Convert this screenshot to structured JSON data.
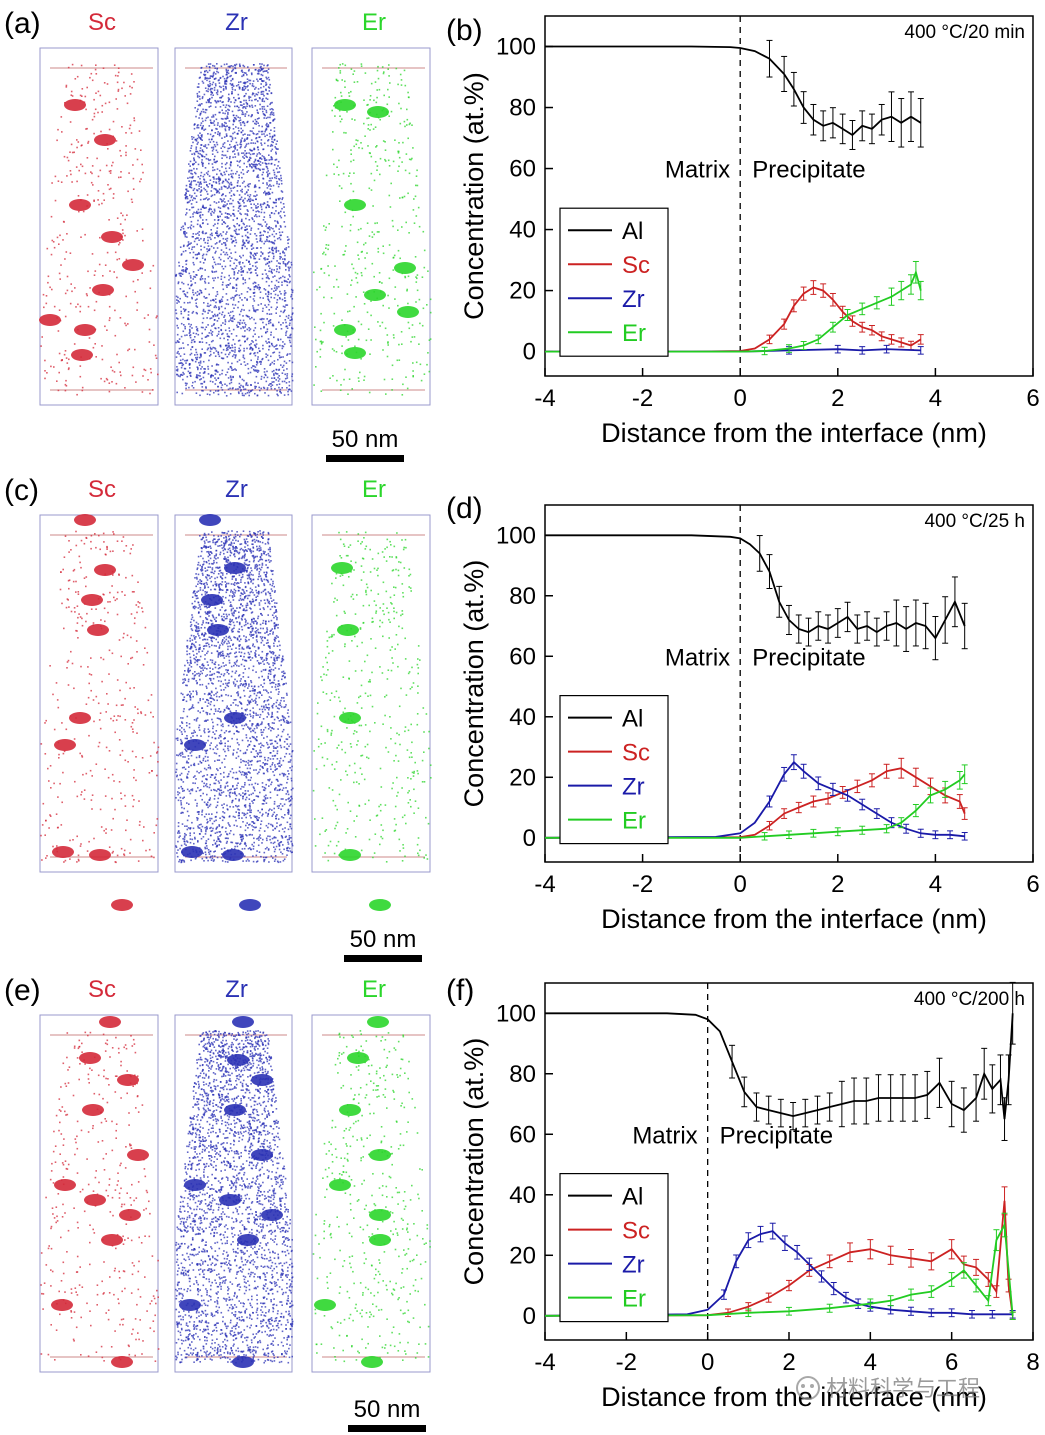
{
  "panels": [
    {
      "label": "(a)",
      "elements": [
        {
          "name": "Sc",
          "color": "#d42a3a"
        },
        {
          "name": "Zr",
          "color": "#2b32b5"
        },
        {
          "name": "Er",
          "color": "#2bd62b"
        }
      ],
      "scale_bar": "50 nm"
    },
    {
      "label": "(c)",
      "elements": [
        {
          "name": "Sc",
          "color": "#d42a3a"
        },
        {
          "name": "Zr",
          "color": "#2b32b5"
        },
        {
          "name": "Er",
          "color": "#2bd62b"
        }
      ],
      "scale_bar": "50 nm"
    },
    {
      "label": "(e)",
      "elements": [
        {
          "name": "Sc",
          "color": "#d42a3a"
        },
        {
          "name": "Zr",
          "color": "#2b32b5"
        },
        {
          "name": "Er",
          "color": "#2bd62b"
        }
      ],
      "scale_bar": "50 nm"
    }
  ],
  "watermark": "材料科学与工程",
  "chart_data": [
    {
      "type": "line",
      "panel_label": "(b)",
      "condition": "400 °C/20 min",
      "xlabel": "Distance from the interface (nm)",
      "ylabel": "Concentration (at.%)",
      "xlim": [
        -4,
        6
      ],
      "ylim": [
        -8,
        110
      ],
      "xticks": [
        -4,
        -2,
        0,
        2,
        4,
        6
      ],
      "yticks": [
        0,
        20,
        40,
        60,
        80,
        100
      ],
      "region_labels": [
        "Matrix",
        "Precipitate"
      ],
      "interface_x": 0,
      "legend": "left-center",
      "series": [
        {
          "name": "Al",
          "color": "#000000",
          "points": [
            [
              -4,
              100
            ],
            [
              -1,
              100
            ],
            [
              -0.2,
              99.8
            ],
            [
              0,
              99.5
            ],
            [
              0.3,
              98.5
            ],
            [
              0.6,
              96
            ],
            [
              0.9,
              91
            ],
            [
              1.1,
              86
            ],
            [
              1.3,
              80
            ],
            [
              1.5,
              76
            ],
            [
              1.7,
              74
            ],
            [
              1.9,
              75
            ],
            [
              2.1,
              73
            ],
            [
              2.3,
              71
            ],
            [
              2.5,
              74
            ],
            [
              2.7,
              73
            ],
            [
              2.9,
              76
            ],
            [
              3.1,
              77
            ],
            [
              3.3,
              75
            ],
            [
              3.5,
              77
            ],
            [
              3.7,
              75
            ]
          ]
        },
        {
          "name": "Sc",
          "color": "#cc2222",
          "points": [
            [
              -4,
              0
            ],
            [
              -1,
              0
            ],
            [
              0,
              0.2
            ],
            [
              0.3,
              1
            ],
            [
              0.6,
              4
            ],
            [
              0.9,
              9
            ],
            [
              1.1,
              15
            ],
            [
              1.3,
              19
            ],
            [
              1.5,
              21
            ],
            [
              1.7,
              20
            ],
            [
              1.9,
              17
            ],
            [
              2.1,
              13
            ],
            [
              2.3,
              10
            ],
            [
              2.5,
              8
            ],
            [
              2.7,
              7
            ],
            [
              2.9,
              5
            ],
            [
              3.1,
              4
            ],
            [
              3.3,
              3
            ],
            [
              3.5,
              2
            ],
            [
              3.7,
              4
            ]
          ]
        },
        {
          "name": "Zr",
          "color": "#1a1aa8",
          "points": [
            [
              -4,
              0
            ],
            [
              0,
              0
            ],
            [
              1,
              0.4
            ],
            [
              2,
              0.8
            ],
            [
              2.5,
              0.4
            ],
            [
              3,
              0.8
            ],
            [
              3.7,
              0.4
            ]
          ]
        },
        {
          "name": "Er",
          "color": "#22cc22",
          "points": [
            [
              -4,
              0
            ],
            [
              0,
              0
            ],
            [
              0.5,
              0.2
            ],
            [
              1,
              1
            ],
            [
              1.3,
              2
            ],
            [
              1.6,
              4
            ],
            [
              1.9,
              8
            ],
            [
              2.2,
              12
            ],
            [
              2.5,
              14
            ],
            [
              2.8,
              16
            ],
            [
              3.1,
              18
            ],
            [
              3.3,
              20
            ],
            [
              3.5,
              22
            ],
            [
              3.6,
              26
            ],
            [
              3.7,
              20
            ]
          ]
        }
      ]
    },
    {
      "type": "line",
      "panel_label": "(d)",
      "condition": "400 °C/25 h",
      "xlabel": "Distance from the interface (nm)",
      "ylabel": "Concentration (at.%)",
      "xlim": [
        -4,
        6
      ],
      "ylim": [
        -8,
        110
      ],
      "xticks": [
        -4,
        -2,
        0,
        2,
        4,
        6
      ],
      "yticks": [
        0,
        20,
        40,
        60,
        80,
        100
      ],
      "region_labels": [
        "Matrix",
        "Precipitate"
      ],
      "interface_x": 0,
      "legend": "left-center",
      "series": [
        {
          "name": "Al",
          "color": "#000000",
          "points": [
            [
              -4,
              100
            ],
            [
              -1,
              100
            ],
            [
              -0.2,
              99.5
            ],
            [
              0,
              99
            ],
            [
              0.2,
              97
            ],
            [
              0.4,
              94
            ],
            [
              0.6,
              88
            ],
            [
              0.8,
              78
            ],
            [
              1,
              72
            ],
            [
              1.2,
              69
            ],
            [
              1.4,
              68
            ],
            [
              1.6,
              70
            ],
            [
              1.8,
              69
            ],
            [
              2,
              71
            ],
            [
              2.2,
              73
            ],
            [
              2.4,
              69
            ],
            [
              2.6,
              70
            ],
            [
              2.8,
              68
            ],
            [
              3,
              70
            ],
            [
              3.2,
              71
            ],
            [
              3.4,
              69
            ],
            [
              3.6,
              71
            ],
            [
              3.8,
              70
            ],
            [
              4,
              66
            ],
            [
              4.2,
              72
            ],
            [
              4.4,
              78
            ],
            [
              4.6,
              70
            ]
          ]
        },
        {
          "name": "Sc",
          "color": "#cc2222",
          "points": [
            [
              -4,
              0
            ],
            [
              0,
              0.2
            ],
            [
              0.3,
              1
            ],
            [
              0.6,
              4
            ],
            [
              0.9,
              8
            ],
            [
              1.2,
              10
            ],
            [
              1.5,
              12
            ],
            [
              1.8,
              13
            ],
            [
              2.1,
              15
            ],
            [
              2.4,
              17
            ],
            [
              2.7,
              19
            ],
            [
              3,
              22
            ],
            [
              3.3,
              23
            ],
            [
              3.6,
              20
            ],
            [
              3.9,
              17
            ],
            [
              4.2,
              14
            ],
            [
              4.5,
              12
            ],
            [
              4.6,
              8
            ]
          ]
        },
        {
          "name": "Zr",
          "color": "#1a1aa8",
          "points": [
            [
              -4,
              0
            ],
            [
              -0.5,
              0.3
            ],
            [
              0,
              1.5
            ],
            [
              0.3,
              5
            ],
            [
              0.6,
              12
            ],
            [
              0.9,
              21
            ],
            [
              1.1,
              25
            ],
            [
              1.3,
              22
            ],
            [
              1.6,
              18
            ],
            [
              1.9,
              16
            ],
            [
              2.2,
              14
            ],
            [
              2.5,
              11
            ],
            [
              2.8,
              8
            ],
            [
              3.1,
              5
            ],
            [
              3.4,
              3
            ],
            [
              3.7,
              1.5
            ],
            [
              4,
              1
            ],
            [
              4.3,
              1
            ],
            [
              4.6,
              0.5
            ]
          ]
        },
        {
          "name": "Er",
          "color": "#22cc22",
          "points": [
            [
              -4,
              0
            ],
            [
              0,
              0
            ],
            [
              0.5,
              0.5
            ],
            [
              1,
              1
            ],
            [
              1.5,
              1.5
            ],
            [
              2,
              2
            ],
            [
              2.5,
              2.5
            ],
            [
              3,
              3
            ],
            [
              3.3,
              5
            ],
            [
              3.6,
              9
            ],
            [
              3.9,
              14
            ],
            [
              4.2,
              16
            ],
            [
              4.5,
              19
            ],
            [
              4.6,
              21
            ]
          ]
        }
      ]
    },
    {
      "type": "line",
      "panel_label": "(f)",
      "condition": "400 °C/200 h",
      "xlabel": "Distance from the interface (nm)",
      "ylabel": "Concentration (at.%)",
      "xlim": [
        -4,
        8
      ],
      "ylim": [
        -8,
        110
      ],
      "xticks": [
        -4,
        -2,
        0,
        2,
        4,
        6,
        8
      ],
      "yticks": [
        0,
        20,
        40,
        60,
        80,
        100
      ],
      "region_labels": [
        "Matrix",
        "Precipitate"
      ],
      "interface_x": 0,
      "legend": "left-center",
      "series": [
        {
          "name": "Al",
          "color": "#000000",
          "points": [
            [
              -4,
              100
            ],
            [
              -1,
              100
            ],
            [
              -0.3,
              99.5
            ],
            [
              0,
              98
            ],
            [
              0.3,
              94
            ],
            [
              0.6,
              84
            ],
            [
              0.9,
              74
            ],
            [
              1.2,
              69
            ],
            [
              1.5,
              68
            ],
            [
              1.8,
              67
            ],
            [
              2.1,
              66
            ],
            [
              2.4,
              67
            ],
            [
              2.7,
              68
            ],
            [
              3,
              69
            ],
            [
              3.3,
              70
            ],
            [
              3.6,
              71
            ],
            [
              3.9,
              71
            ],
            [
              4.2,
              72
            ],
            [
              4.5,
              72
            ],
            [
              4.8,
              72
            ],
            [
              5.1,
              72
            ],
            [
              5.4,
              73
            ],
            [
              5.7,
              77
            ],
            [
              6,
              70
            ],
            [
              6.3,
              68
            ],
            [
              6.6,
              72
            ],
            [
              6.8,
              80
            ],
            [
              7,
              75
            ],
            [
              7.2,
              78
            ],
            [
              7.3,
              65
            ],
            [
              7.4,
              78
            ],
            [
              7.5,
              100
            ]
          ]
        },
        {
          "name": "Sc",
          "color": "#cc2222",
          "points": [
            [
              -4,
              0
            ],
            [
              0,
              0.2
            ],
            [
              0.5,
              1
            ],
            [
              1,
              3
            ],
            [
              1.5,
              6
            ],
            [
              2,
              10
            ],
            [
              2.5,
              15
            ],
            [
              3,
              18
            ],
            [
              3.5,
              21
            ],
            [
              4,
              22
            ],
            [
              4.5,
              20
            ],
            [
              5,
              19
            ],
            [
              5.5,
              18
            ],
            [
              6,
              22
            ],
            [
              6.3,
              17
            ],
            [
              6.6,
              16
            ],
            [
              6.9,
              12
            ],
            [
              7.1,
              8
            ],
            [
              7.3,
              38
            ],
            [
              7.4,
              10
            ],
            [
              7.5,
              0
            ]
          ]
        },
        {
          "name": "Zr",
          "color": "#1a1aa8",
          "points": [
            [
              -4,
              0
            ],
            [
              -0.5,
              0.5
            ],
            [
              0,
              2
            ],
            [
              0.4,
              7
            ],
            [
              0.7,
              18
            ],
            [
              1,
              25
            ],
            [
              1.3,
              27
            ],
            [
              1.6,
              28
            ],
            [
              1.9,
              24
            ],
            [
              2.2,
              21
            ],
            [
              2.5,
              17
            ],
            [
              2.8,
              13
            ],
            [
              3.1,
              9
            ],
            [
              3.4,
              6
            ],
            [
              3.7,
              4
            ],
            [
              4,
              3
            ],
            [
              4.5,
              2
            ],
            [
              5,
              1.5
            ],
            [
              5.5,
              1
            ],
            [
              6,
              1
            ],
            [
              6.5,
              0.5
            ],
            [
              7,
              0.5
            ],
            [
              7.5,
              0.5
            ]
          ]
        },
        {
          "name": "Er",
          "color": "#22cc22",
          "points": [
            [
              -4,
              0
            ],
            [
              0,
              0.2
            ],
            [
              1,
              1
            ],
            [
              2,
              1.5
            ],
            [
              3,
              2.5
            ],
            [
              4,
              4
            ],
            [
              4.5,
              5
            ],
            [
              5,
              7
            ],
            [
              5.5,
              8
            ],
            [
              6,
              12
            ],
            [
              6.3,
              15
            ],
            [
              6.6,
              10
            ],
            [
              6.9,
              5
            ],
            [
              7.1,
              25
            ],
            [
              7.3,
              30
            ],
            [
              7.5,
              0
            ]
          ]
        }
      ]
    }
  ]
}
